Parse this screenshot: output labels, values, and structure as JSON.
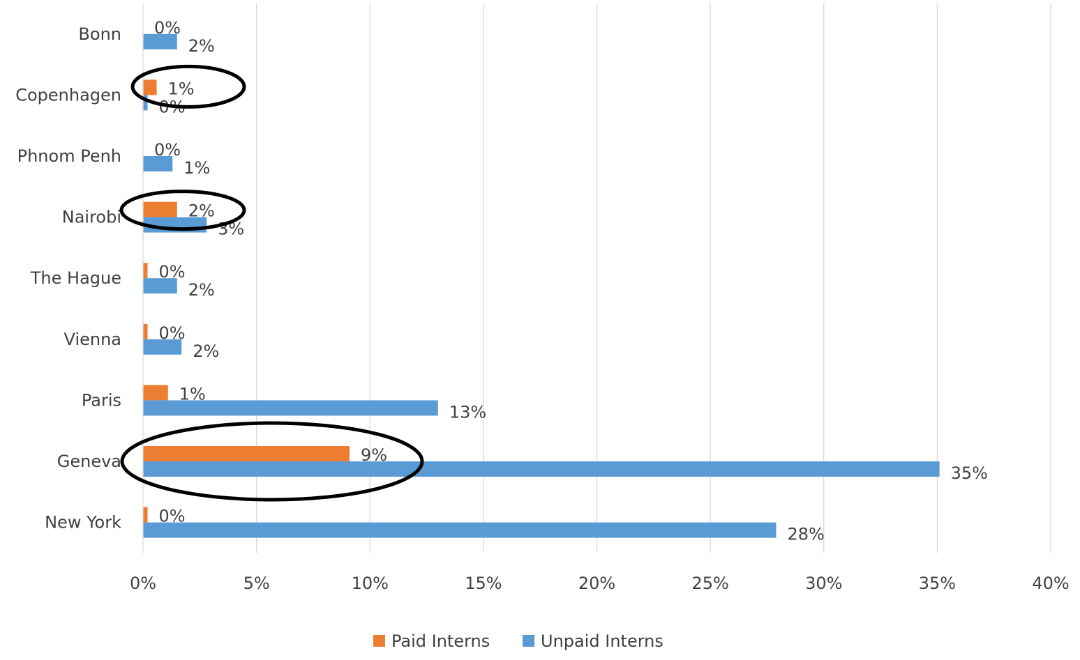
{
  "chart_data": {
    "type": "bar",
    "orientation": "horizontal",
    "categories": [
      "Bonn",
      "Copenhagen",
      "Phnom Penh",
      "Nairobi",
      "The Hague",
      "Vienna",
      "Paris",
      "Geneva",
      "New York"
    ],
    "series": [
      {
        "name": "Paid Interns",
        "color": "#ED7D31",
        "values": [
          0.0,
          0.6,
          0.0,
          1.5,
          0.2,
          0.2,
          1.1,
          9.1,
          0.2
        ],
        "labels": [
          "0%",
          "1%",
          "0%",
          "2%",
          "0%",
          "0%",
          "1%",
          "9%",
          "0%"
        ]
      },
      {
        "name": "Unpaid Interns",
        "color": "#5B9BD5",
        "values": [
          1.5,
          0.2,
          1.3,
          2.8,
          1.5,
          1.7,
          13.0,
          35.1,
          27.9
        ],
        "labels": [
          "2%",
          "0%",
          "1%",
          "3%",
          "2%",
          "2%",
          "13%",
          "35%",
          "28%"
        ]
      }
    ],
    "x_ticks": [
      "0%",
      "5%",
      "10%",
      "15%",
      "20%",
      "25%",
      "30%",
      "35%",
      "40%"
    ],
    "xlim": [
      0,
      40
    ],
    "title": "",
    "xlabel": "",
    "ylabel": "",
    "grid": "vertical",
    "legend_position": "bottom",
    "annotations": [
      {
        "type": "ellipse",
        "target": "Copenhagen",
        "series": "Paid Interns"
      },
      {
        "type": "ellipse",
        "target": "Nairobi",
        "series": "Paid Interns"
      },
      {
        "type": "ellipse",
        "target": "Geneva",
        "series": "Paid Interns"
      }
    ]
  }
}
